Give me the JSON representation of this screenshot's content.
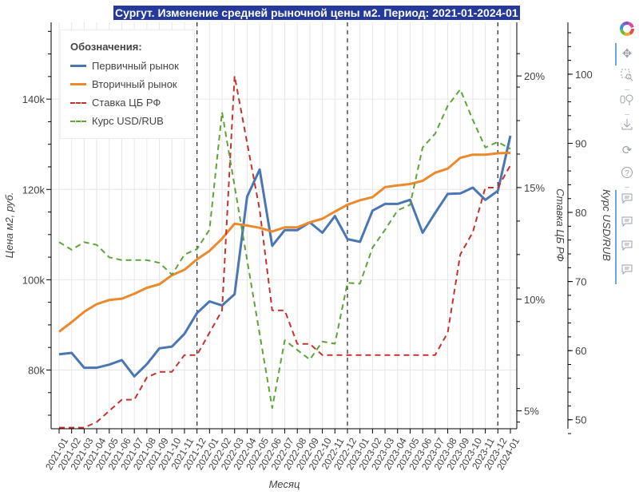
{
  "chart_data": {
    "type": "line",
    "title": "Сургут. Изменение средней рыночной цены м2. Период: 2021-01-2024-01",
    "xlabel": "Месяц",
    "ylabel": "Цена м2, руб.",
    "y2label": "Ставка ЦБ РФ",
    "y3label": "Курс USD/RUB",
    "grid": true,
    "legend_title": "Обозначения:",
    "legend_position": "top-left",
    "x": [
      "2021-01",
      "2021-02",
      "2021-03",
      "2021-04",
      "2021-05",
      "2021-06",
      "2021-07",
      "2021-08",
      "2021-09",
      "2021-10",
      "2021-11",
      "2021-12",
      "2022-01",
      "2022-02",
      "2022-03",
      "2022-04",
      "2022-05",
      "2022-06",
      "2022-07",
      "2022-08",
      "2022-09",
      "2022-10",
      "2022-11",
      "2022-12",
      "2023-01",
      "2023-02",
      "2023-03",
      "2023-04",
      "2023-05",
      "2023-06",
      "2023-07",
      "2023-08",
      "2023-09",
      "2023-10",
      "2023-11",
      "2023-12",
      "2024-01"
    ],
    "year_markers": [
      "2021-12",
      "2022-12",
      "2023-12"
    ],
    "ylim": [
      67000,
      157000
    ],
    "y_ticks": [
      80000,
      100000,
      120000,
      140000
    ],
    "y_tick_labels": [
      "80k",
      "100k",
      "120k",
      "140k"
    ],
    "y2lim": [
      4.2,
      22.4
    ],
    "y2_ticks": [
      5,
      10,
      15,
      20
    ],
    "y2_tick_labels": [
      "5%",
      "10%",
      "15%",
      "20%"
    ],
    "y3lim": [
      48.7,
      107.5
    ],
    "y3_ticks": [
      50,
      60,
      70,
      80,
      90,
      100
    ],
    "y3_tick_labels": [
      "50",
      "60",
      "70",
      "80",
      "90",
      "100"
    ],
    "series": [
      {
        "name": "Первичный рынок",
        "axis": "price",
        "color": "#4a76b4",
        "style": "solid",
        "values": [
          83500,
          83800,
          80500,
          80500,
          81200,
          82200,
          78600,
          81300,
          84800,
          85200,
          88000,
          92600,
          95200,
          94300,
          96800,
          118400,
          124400,
          107500,
          111000,
          111000,
          112700,
          110400,
          114100,
          109000,
          108400,
          115300,
          116800,
          116800,
          117700,
          110400,
          114800,
          119000,
          119100,
          120400,
          117700,
          119700,
          131900
        ]
      },
      {
        "name": "Вторичный рынок",
        "axis": "price",
        "color": "#ea8a2c",
        "style": "solid",
        "values": [
          88500,
          90600,
          92900,
          94600,
          95500,
          95800,
          96900,
          98200,
          99000,
          101000,
          102200,
          104500,
          106400,
          109100,
          112400,
          112000,
          111500,
          110700,
          111600,
          111600,
          112700,
          113500,
          115100,
          116600,
          117600,
          118300,
          120500,
          120900,
          121200,
          121900,
          123700,
          124600,
          127000,
          127700,
          127700,
          128000,
          128100
        ]
      },
      {
        "name": "Ставка ЦБ РФ",
        "axis": "rate",
        "color": "#c2332e",
        "style": "dashed",
        "unit": "%",
        "values": [
          4.25,
          4.25,
          4.25,
          4.5,
          5.0,
          5.5,
          5.5,
          6.5,
          6.75,
          6.75,
          7.5,
          7.5,
          8.5,
          9.5,
          20.0,
          17.0,
          14.0,
          9.5,
          9.5,
          8.0,
          8.0,
          7.5,
          7.5,
          7.5,
          7.5,
          7.5,
          7.5,
          7.5,
          7.5,
          7.5,
          7.5,
          8.5,
          12.0,
          13.0,
          15.0,
          15.0,
          16.0
        ]
      },
      {
        "name": "Курс USD/RUB",
        "axis": "usd",
        "color": "#5ea33a",
        "style": "dashed",
        "values": [
          75.7,
          74.6,
          75.7,
          75.3,
          73.5,
          73.1,
          73.1,
          73.1,
          72.7,
          71.0,
          73.9,
          74.7,
          77.5,
          94.5,
          83.8,
          73.1,
          62.4,
          51.7,
          61.5,
          60.1,
          58.7,
          61.3,
          61.0,
          69.8,
          69.7,
          74.9,
          77.5,
          80.3,
          81.1,
          89.4,
          91.4,
          95.4,
          97.8,
          93.4,
          89.4,
          90.2,
          89.2
        ]
      }
    ]
  },
  "toolbar": {
    "logo": "bokeh-logo-icon",
    "tools": [
      "pan-icon",
      "box-zoom-icon",
      "wheel-zoom-icon",
      "save-icon",
      "reset-icon",
      "help-icon",
      "hover-icon",
      "hover-icon",
      "hover-icon",
      "hover-icon"
    ]
  }
}
